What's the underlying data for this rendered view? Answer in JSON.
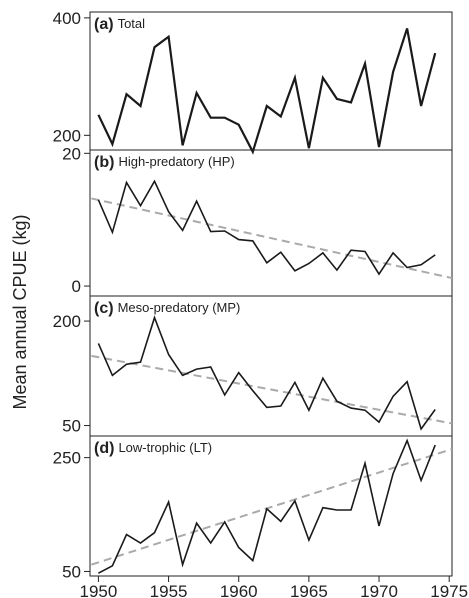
{
  "figure": {
    "ylabel": "Mean annual CPUE (kg)",
    "xlabel": "",
    "x_ticks": [
      "1950",
      "1955",
      "1960",
      "1965",
      "1970",
      "1975"
    ]
  },
  "chart_data": [
    {
      "type": "line",
      "letter": "(a)",
      "title": "Total",
      "x": [
        1950,
        1951,
        1952,
        1953,
        1954,
        1955,
        1956,
        1957,
        1958,
        1959,
        1960,
        1961,
        1962,
        1963,
        1964,
        1965,
        1966,
        1967,
        1968,
        1969,
        1970,
        1971,
        1972,
        1973,
        1974
      ],
      "series": [
        {
          "values": [
            235,
            185,
            270,
            250,
            350,
            368,
            183,
            272,
            230,
            230,
            218,
            172,
            250,
            232,
            298,
            178,
            298,
            262,
            256,
            322,
            180,
            308,
            382,
            250,
            340
          ]
        }
      ],
      "trend": null,
      "ylim": [
        175,
        410
      ],
      "y_ticks": [
        200,
        400
      ],
      "xlim": [
        1949.4,
        1975.2
      ],
      "line_color": "#1a1a1a",
      "trend_color": "#aaaaaa"
    },
    {
      "type": "line",
      "letter": "(b)",
      "title": "High-predatory (HP)",
      "x": [
        1950,
        1951,
        1952,
        1953,
        1954,
        1955,
        1956,
        1957,
        1958,
        1959,
        1960,
        1961,
        1962,
        1963,
        1964,
        1965,
        1966,
        1967,
        1968,
        1969,
        1970,
        1971,
        1972,
        1973,
        1974
      ],
      "series": [
        {
          "values": [
            13,
            8.1,
            15.6,
            12.1,
            15.8,
            11.2,
            8.4,
            12.8,
            8.2,
            8.3,
            7,
            6.8,
            3.5,
            5.1,
            2.3,
            3.4,
            5,
            2.4,
            5.4,
            5.2,
            1.8,
            5,
            2.8,
            3.2,
            4.7
          ]
        }
      ],
      "trend": {
        "x": [
          1949.5,
          1975.2
        ],
        "y": [
          13.2,
          1.2
        ]
      },
      "ylim": [
        -1.5,
        20.5
      ],
      "y_ticks": [
        0,
        20
      ],
      "xlim": [
        1949.4,
        1975.2
      ],
      "line_color": "#1a1a1a",
      "trend_color": "#aaaaaa"
    },
    {
      "type": "line",
      "letter": "(c)",
      "title": "Meso-predatory (MP)",
      "x": [
        1950,
        1951,
        1952,
        1953,
        1954,
        1955,
        1956,
        1957,
        1958,
        1959,
        1960,
        1961,
        1962,
        1963,
        1964,
        1965,
        1966,
        1967,
        1968,
        1969,
        1970,
        1971,
        1972,
        1973,
        1974
      ],
      "series": [
        {
          "values": [
            168,
            122,
            138,
            141,
            205,
            152,
            122,
            131,
            134,
            94,
            126,
            100,
            76,
            78,
            112,
            72,
            118,
            85,
            75,
            72,
            55,
            92,
            113,
            45,
            73
          ]
        }
      ],
      "trend": {
        "x": [
          1949.5,
          1975.2
        ],
        "y": [
          150,
          53
        ]
      },
      "ylim": [
        35,
        236
      ],
      "y_ticks": [
        50,
        200
      ],
      "xlim": [
        1949.4,
        1975.2
      ],
      "line_color": "#1a1a1a",
      "trend_color": "#aaaaaa"
    },
    {
      "type": "line",
      "letter": "(d)",
      "title": "Low-trophic (LT)",
      "x": [
        1950,
        1951,
        1952,
        1953,
        1954,
        1955,
        1956,
        1957,
        1958,
        1959,
        1960,
        1961,
        1962,
        1963,
        1964,
        1965,
        1966,
        1967,
        1968,
        1969,
        1970,
        1971,
        1972,
        1973,
        1974
      ],
      "series": [
        {
          "values": [
            47,
            60,
            115,
            100,
            118,
            172,
            62,
            135,
            100,
            137,
            92,
            69,
            160,
            138,
            174,
            105,
            162,
            158,
            158,
            240,
            130,
            222,
            280,
            210,
            272
          ]
        }
      ],
      "trend": {
        "x": [
          1949.5,
          1975.2
        ],
        "y": [
          62,
          265
        ]
      },
      "ylim": [
        42,
        288
      ],
      "y_ticks": [
        50,
        250
      ],
      "xlim": [
        1949.4,
        1975.2
      ],
      "line_color": "#1a1a1a",
      "trend_color": "#aaaaaa"
    }
  ]
}
